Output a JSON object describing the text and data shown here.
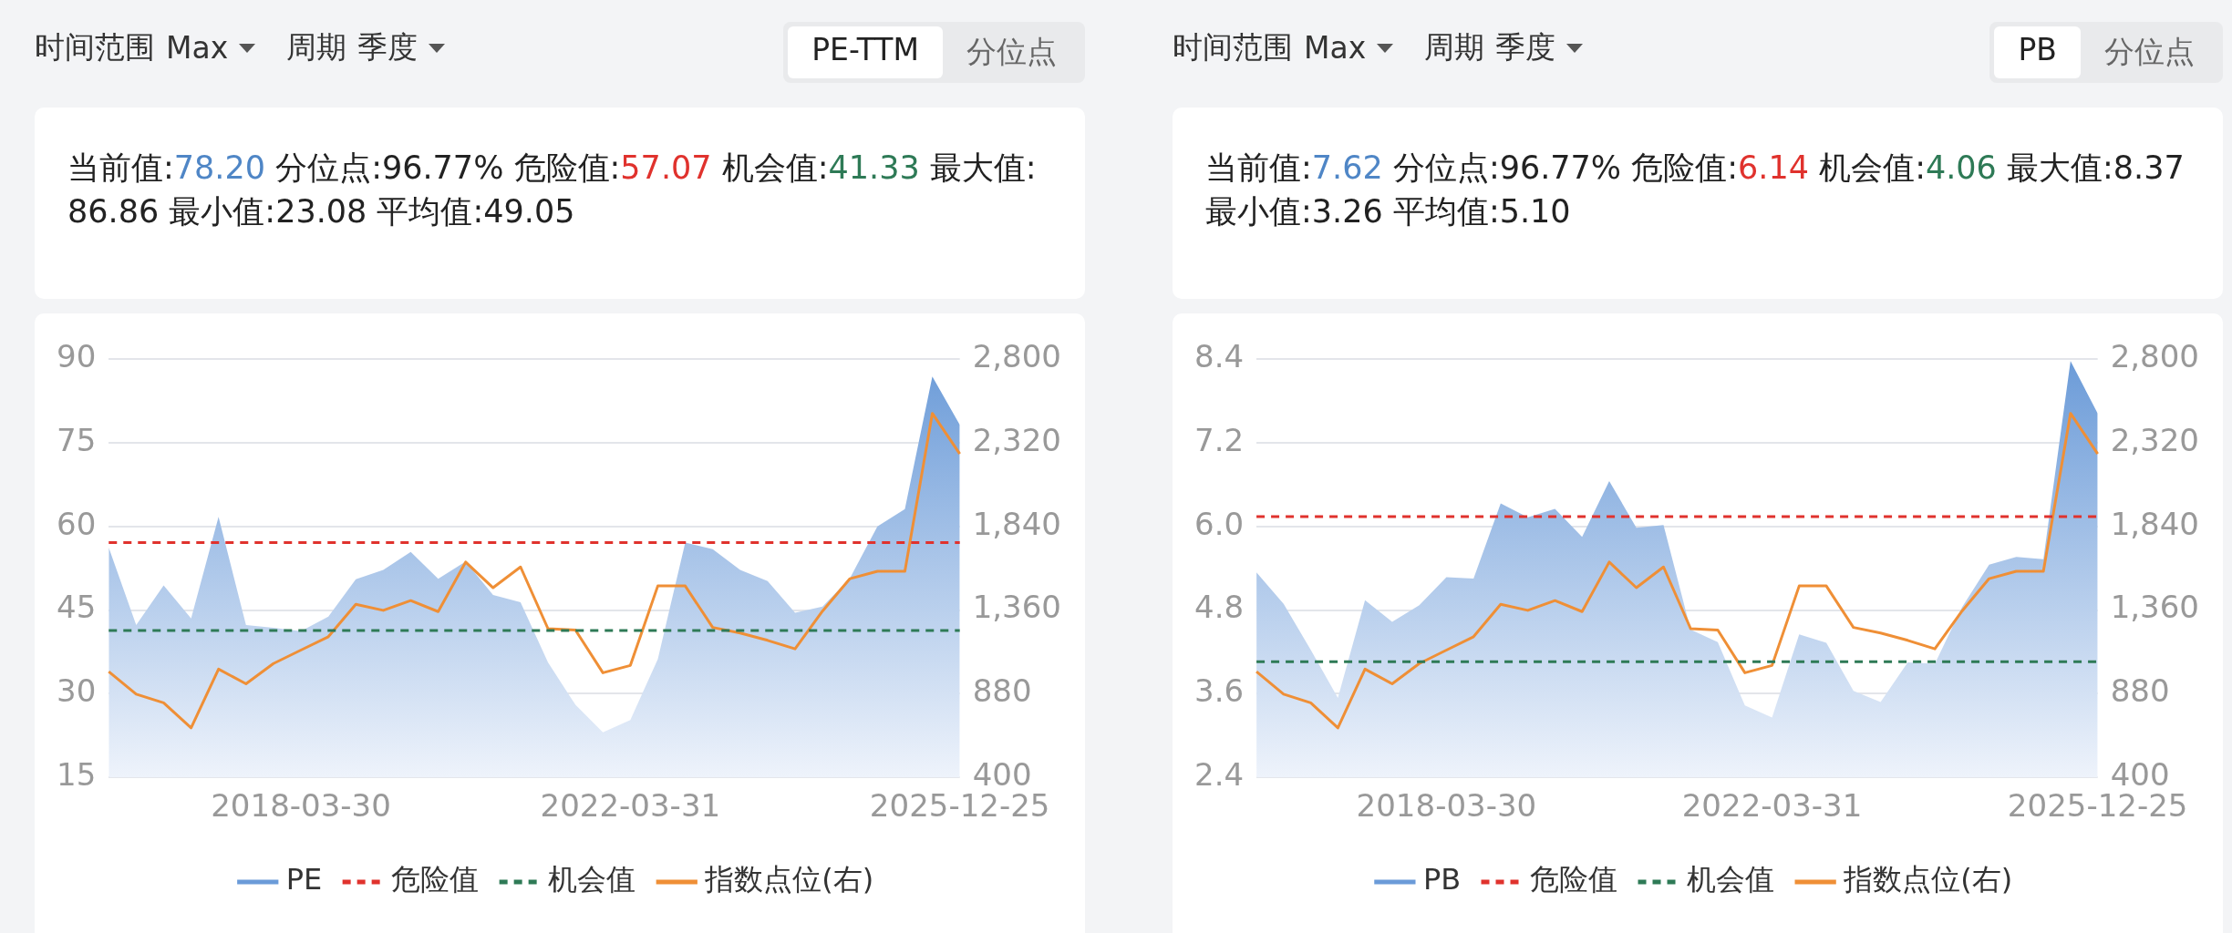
{
  "chart_data": [
    {
      "type": "area",
      "subtitle": "当前值:78.20 分位点:96.77% 危险值:57.07 机会值:41.33 最大值:86.86 最小值:23.08 平均值:49.05",
      "annotations": [
        "时间范围",
        "Max",
        "周期",
        "季度",
        "PE-TTM",
        "分位点"
      ],
      "categories": [
        null,
        null,
        null,
        null,
        null,
        null,
        null,
        "2018-03-30",
        null,
        null,
        null,
        null,
        null,
        null,
        null,
        null,
        null,
        null,
        null,
        "2022-03-31",
        null,
        null,
        null,
        null,
        null,
        null,
        null,
        null,
        null,
        null,
        null,
        "2025-12-25"
      ],
      "series": [
        {
          "name": "PE",
          "color": "#6b9bd8",
          "values": [
            56.2,
            42.3,
            49.4,
            43.5,
            61.7,
            42.3,
            41.8,
            41.2,
            43.8,
            50.5,
            52.2,
            55.4,
            50.6,
            53.7,
            47.7,
            46.4,
            35.6,
            28.0,
            23.08,
            25.3,
            36.2,
            57.1,
            55.9,
            52.2,
            50.2,
            44.5,
            45.6,
            50.7,
            60.0,
            63.1,
            86.86,
            78.2
          ]
        },
        {
          "name": "危险值",
          "type": "line",
          "line_style": "dashed",
          "color": "#e0322d",
          "values": [
            57.07,
            57.07,
            57.07,
            57.07,
            57.07,
            57.07,
            57.07,
            57.07,
            57.07,
            57.07,
            57.07,
            57.07,
            57.07,
            57.07,
            57.07,
            57.07,
            57.07,
            57.07,
            57.07,
            57.07,
            57.07,
            57.07,
            57.07,
            57.07,
            57.07,
            57.07,
            57.07,
            57.07,
            57.07,
            57.07,
            57.07,
            57.07
          ]
        },
        {
          "name": "机会值",
          "type": "line",
          "line_style": "dashed",
          "color": "#2e7a56",
          "values": [
            41.33,
            41.33,
            41.33,
            41.33,
            41.33,
            41.33,
            41.33,
            41.33,
            41.33,
            41.33,
            41.33,
            41.33,
            41.33,
            41.33,
            41.33,
            41.33,
            41.33,
            41.33,
            41.33,
            41.33,
            41.33,
            41.33,
            41.33,
            41.33,
            41.33,
            41.33,
            41.33,
            41.33,
            41.33,
            41.33,
            41.33,
            41.33
          ]
        },
        {
          "name": "指数点位(右)",
          "type": "line",
          "axis": "y2",
          "color": "#ef8f36",
          "values": [
            1007,
            877,
            828,
            684,
            1021,
            937,
            1053,
            1130,
            1207,
            1393,
            1358,
            1414,
            1351,
            1635,
            1488,
            1607,
            1253,
            1245,
            1000,
            1042,
            1498,
            1498,
            1260,
            1228,
            1186,
            1137,
            1354,
            1540,
            1582,
            1582,
            2488,
            2256
          ]
        }
      ],
      "ylim": [
        15,
        90
      ],
      "yticks": [
        15,
        30,
        45,
        60,
        75,
        90
      ],
      "y2lim": [
        400,
        2800
      ],
      "y2ticks": [
        {
          "value": 400,
          "label": "400"
        },
        {
          "value": 880,
          "label": "880"
        },
        {
          "value": 1360,
          "label": "1,360"
        },
        {
          "value": 1840,
          "label": "1,840"
        },
        {
          "value": 2320,
          "label": "2,320"
        },
        {
          "value": 2800,
          "label": "2,800"
        }
      ],
      "grid": "y",
      "legend": "bottom",
      "marker": "none"
    },
    {
      "type": "area",
      "subtitle": "当前值:7.62 分位点:96.77% 危险值:6.14 机会值:4.06 最大值:8.37 最小值:3.26 平均值:5.10",
      "annotations": [
        "时间范围",
        "Max",
        "周期",
        "季度",
        "PB",
        "分位点"
      ],
      "categories": [
        null,
        null,
        null,
        null,
        null,
        null,
        null,
        "2018-03-30",
        null,
        null,
        null,
        null,
        null,
        null,
        null,
        null,
        null,
        null,
        null,
        "2022-03-31",
        null,
        null,
        null,
        null,
        null,
        null,
        null,
        null,
        null,
        null,
        null,
        "2025-12-25"
      ],
      "series": [
        {
          "name": "PB",
          "color": "#6b9bd8",
          "values": [
            5.34,
            4.89,
            4.23,
            3.54,
            4.94,
            4.63,
            4.87,
            5.27,
            5.25,
            6.33,
            6.13,
            6.25,
            5.85,
            6.65,
            5.98,
            6.02,
            4.52,
            4.34,
            3.43,
            3.26,
            4.45,
            4.33,
            3.64,
            3.48,
            4.05,
            4.03,
            4.84,
            5.45,
            5.56,
            5.53,
            8.37,
            7.62
          ]
        },
        {
          "name": "危险值",
          "type": "line",
          "line_style": "dashed",
          "color": "#e0322d",
          "values": [
            6.14,
            6.14,
            6.14,
            6.14,
            6.14,
            6.14,
            6.14,
            6.14,
            6.14,
            6.14,
            6.14,
            6.14,
            6.14,
            6.14,
            6.14,
            6.14,
            6.14,
            6.14,
            6.14,
            6.14,
            6.14,
            6.14,
            6.14,
            6.14,
            6.14,
            6.14,
            6.14,
            6.14,
            6.14,
            6.14,
            6.14,
            6.14
          ]
        },
        {
          "name": "机会值",
          "type": "line",
          "line_style": "dashed",
          "color": "#2e7a56",
          "values": [
            4.06,
            4.06,
            4.06,
            4.06,
            4.06,
            4.06,
            4.06,
            4.06,
            4.06,
            4.06,
            4.06,
            4.06,
            4.06,
            4.06,
            4.06,
            4.06,
            4.06,
            4.06,
            4.06,
            4.06,
            4.06,
            4.06,
            4.06,
            4.06,
            4.06,
            4.06,
            4.06,
            4.06,
            4.06,
            4.06,
            4.06,
            4.06
          ]
        },
        {
          "name": "指数点位(右)",
          "type": "line",
          "axis": "y2",
          "color": "#ef8f36",
          "values": [
            1007,
            877,
            828,
            684,
            1021,
            937,
            1053,
            1130,
            1207,
            1393,
            1358,
            1414,
            1351,
            1635,
            1488,
            1607,
            1253,
            1245,
            1000,
            1042,
            1498,
            1498,
            1260,
            1228,
            1186,
            1137,
            1354,
            1540,
            1582,
            1582,
            2488,
            2256
          ]
        }
      ],
      "ylim": [
        2.4,
        8.4
      ],
      "yticks": [
        2.4,
        3.6,
        4.8,
        {
          "value": 6,
          "label": "6.0"
        },
        7.2,
        8.4
      ],
      "y2lim": [
        400,
        2800
      ],
      "y2ticks": [
        {
          "value": 400,
          "label": "400"
        },
        {
          "value": 880,
          "label": "880"
        },
        {
          "value": 1360,
          "label": "1,360"
        },
        {
          "value": 1840,
          "label": "1,840"
        },
        {
          "value": 2320,
          "label": "2,320"
        },
        {
          "value": 2800,
          "label": "2,800"
        }
      ],
      "grid": "y",
      "legend": "bottom",
      "marker": "none"
    }
  ]
}
